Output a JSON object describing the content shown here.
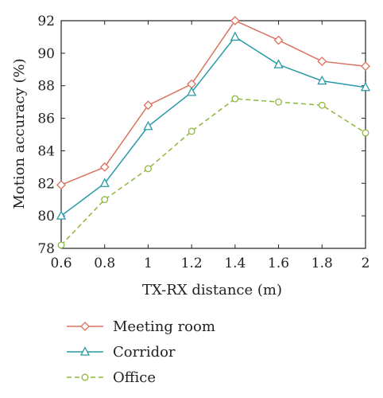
{
  "chart_data": {
    "type": "line",
    "title": "",
    "xlabel": "TX-RX distance (m)",
    "ylabel": "Motion accuracy (%)",
    "x": [
      0.6,
      0.8,
      1.0,
      1.2,
      1.4,
      1.6,
      1.8,
      2.0
    ],
    "xticks": [
      "0.6",
      "0.8",
      "1",
      "1.2",
      "1.4",
      "1.6",
      "1.8",
      "2"
    ],
    "yticks": [
      "78",
      "80",
      "82",
      "84",
      "86",
      "88",
      "90",
      "92"
    ],
    "xlim": [
      0.6,
      2.0
    ],
    "ylim": [
      78,
      92
    ],
    "grid": false,
    "legend_position": "below",
    "series": [
      {
        "name": "Meeting room",
        "color": "#d9735d",
        "marker": "diamond",
        "dash": "solid",
        "values": [
          81.9,
          83.0,
          86.8,
          88.1,
          92.0,
          90.8,
          89.5,
          89.2
        ]
      },
      {
        "name": "Corridor",
        "color": "#2a9aa8",
        "marker": "triangle",
        "dash": "solid",
        "values": [
          80.0,
          82.0,
          85.5,
          87.6,
          91.0,
          89.3,
          88.3,
          87.9
        ]
      },
      {
        "name": "Office",
        "color": "#8db83c",
        "marker": "circle",
        "dash": "dashed",
        "values": [
          78.2,
          81.0,
          82.9,
          85.2,
          87.2,
          87.0,
          86.8,
          85.1
        ]
      }
    ]
  }
}
